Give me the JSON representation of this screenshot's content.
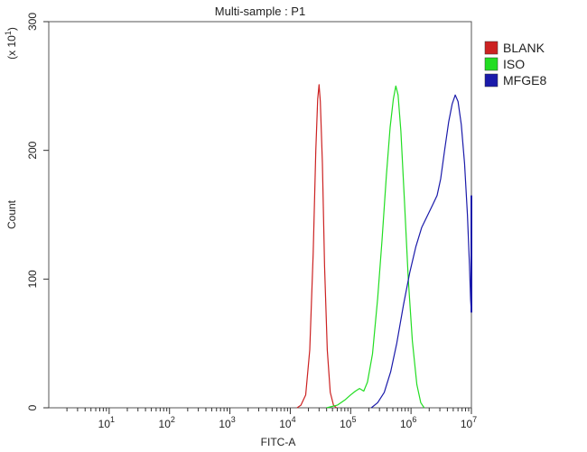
{
  "chart_data": {
    "type": "line",
    "title": "Multi-sample : P1",
    "xlabel": "FITC-A",
    "ylabel": "Count",
    "y_multiplier_label": {
      "prefix": "(x 10",
      "exp": "1",
      "suffix": ")"
    },
    "x_scale": "log",
    "xlim": [
      1,
      10000000
    ],
    "ylim": [
      0,
      300
    ],
    "grid": false,
    "legend_position": "top-right",
    "x_ticks": [
      {
        "value": 10,
        "base": "10",
        "exp": "1"
      },
      {
        "value": 100,
        "base": "10",
        "exp": "2"
      },
      {
        "value": 1000,
        "base": "10",
        "exp": "3"
      },
      {
        "value": 10000,
        "base": "10",
        "exp": "4"
      },
      {
        "value": 100000,
        "base": "10",
        "exp": "5"
      },
      {
        "value": 1000000,
        "base": "10",
        "exp": "6"
      },
      {
        "value": 10000000,
        "base": "10",
        "exp": "7"
      }
    ],
    "y_ticks": [
      {
        "value": 0,
        "label": "0"
      },
      {
        "value": 100,
        "label": "100"
      },
      {
        "value": 200,
        "label": "200"
      },
      {
        "value": 300,
        "label": "300"
      }
    ],
    "series": [
      {
        "name": "BLANK",
        "color": "#cc2222",
        "points": [
          [
            13000,
            0
          ],
          [
            15000,
            2
          ],
          [
            18000,
            10
          ],
          [
            21000,
            45
          ],
          [
            24000,
            120
          ],
          [
            26500,
            200
          ],
          [
            28500,
            240
          ],
          [
            30000,
            251
          ],
          [
            31500,
            238
          ],
          [
            34000,
            190
          ],
          [
            37000,
            110
          ],
          [
            41000,
            45
          ],
          [
            46000,
            12
          ],
          [
            52000,
            2
          ],
          [
            58000,
            0
          ]
        ]
      },
      {
        "name": "ISO",
        "color": "#22dd22",
        "points": [
          [
            40000,
            0
          ],
          [
            60000,
            2
          ],
          [
            80000,
            6
          ],
          [
            100000,
            10
          ],
          [
            120000,
            13
          ],
          [
            140000,
            15
          ],
          [
            165000,
            13
          ],
          [
            190000,
            20
          ],
          [
            230000,
            42
          ],
          [
            280000,
            85
          ],
          [
            330000,
            130
          ],
          [
            390000,
            180
          ],
          [
            450000,
            218
          ],
          [
            510000,
            240
          ],
          [
            560000,
            250
          ],
          [
            610000,
            243
          ],
          [
            680000,
            215
          ],
          [
            780000,
            160
          ],
          [
            900000,
            100
          ],
          [
            1050000,
            52
          ],
          [
            1250000,
            18
          ],
          [
            1450000,
            4
          ],
          [
            1650000,
            0
          ]
        ]
      },
      {
        "name": "MFGE8",
        "color": "#1a1aaa",
        "points": [
          [
            220000,
            0
          ],
          [
            280000,
            4
          ],
          [
            360000,
            12
          ],
          [
            460000,
            28
          ],
          [
            580000,
            50
          ],
          [
            750000,
            80
          ],
          [
            950000,
            105
          ],
          [
            1200000,
            125
          ],
          [
            1500000,
            140
          ],
          [
            1900000,
            150
          ],
          [
            2300000,
            158
          ],
          [
            2700000,
            165
          ],
          [
            3100000,
            178
          ],
          [
            3600000,
            200
          ],
          [
            4200000,
            222
          ],
          [
            4800000,
            236
          ],
          [
            5400000,
            243
          ],
          [
            6000000,
            238
          ],
          [
            6800000,
            220
          ],
          [
            7700000,
            190
          ],
          [
            8600000,
            150
          ],
          [
            9300000,
            110
          ],
          [
            9700000,
            84
          ],
          [
            10000000,
            74
          ]
        ]
      }
    ]
  }
}
